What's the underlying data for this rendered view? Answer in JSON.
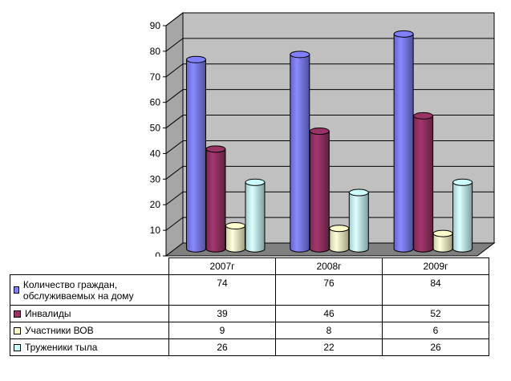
{
  "chart_data": {
    "type": "bar",
    "categories": [
      "2007г",
      "2008г",
      "2009г"
    ],
    "ylim": [
      0,
      90
    ],
    "y_ticks": [
      "0",
      "10",
      "20",
      "30",
      "40",
      "50",
      "60",
      "70",
      "80",
      "90"
    ],
    "grid": true,
    "legend": "data-table",
    "series": [
      {
        "name": "Количество граждан, обслуживаемых на дому",
        "values": [
          74,
          76,
          84
        ],
        "color": "#8080ff"
      },
      {
        "name": "Инвалиды",
        "values": [
          39,
          46,
          52
        ],
        "color": "#993366"
      },
      {
        "name": "Участники ВОВ",
        "values": [
          9,
          8,
          6
        ],
        "color": "#ffffcc"
      },
      {
        "name": "Труженики тыла",
        "values": [
          26,
          22,
          26
        ],
        "color": "#ccffff"
      }
    ],
    "value_labels": [
      [
        "74",
        "76",
        "84"
      ],
      [
        "39",
        "46",
        "52"
      ],
      [
        "9",
        "8",
        "6"
      ],
      [
        "26",
        "22",
        "26"
      ]
    ]
  }
}
